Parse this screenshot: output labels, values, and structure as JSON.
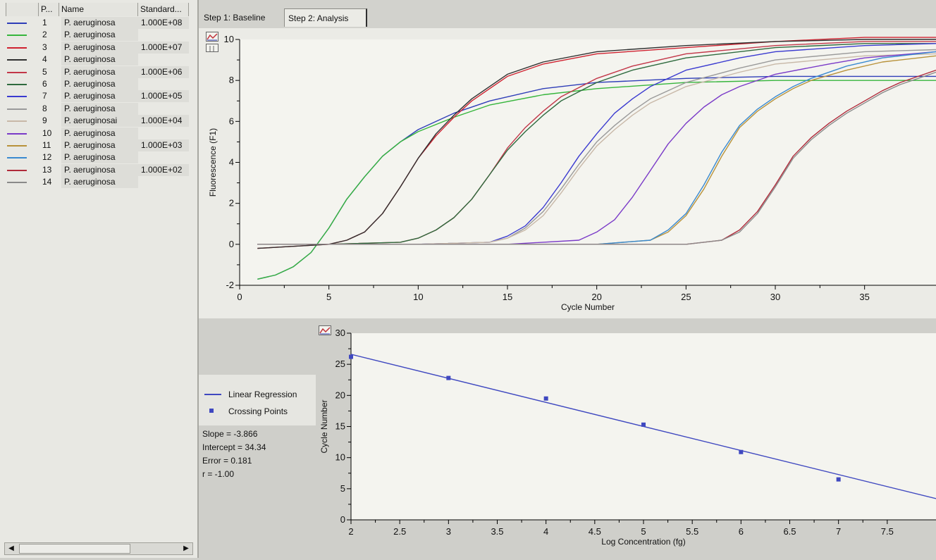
{
  "sample_list": {
    "columns": [
      "P...",
      "Name",
      "Standard..."
    ],
    "rows": [
      {
        "pos": "1",
        "name": "P. aeruginosa",
        "standard": "1.000E+08",
        "color": "#2e3db8"
      },
      {
        "pos": "2",
        "name": "P. aeruginosa",
        "standard": "",
        "color": "#36b53c"
      },
      {
        "pos": "3",
        "name": "P. aeruginosa",
        "standard": "1.000E+07",
        "color": "#cf2230"
      },
      {
        "pos": "4",
        "name": "P. aeruginosa",
        "standard": "",
        "color": "#303030"
      },
      {
        "pos": "5",
        "name": "P. aeruginosa",
        "standard": "1.000E+06",
        "color": "#c23648"
      },
      {
        "pos": "6",
        "name": "P. aeruginosa",
        "standard": "",
        "color": "#2e6a3e"
      },
      {
        "pos": "7",
        "name": "P. aeruginosa",
        "standard": "1.000E+05",
        "color": "#3a3ad0"
      },
      {
        "pos": "8",
        "name": "P. aeruginosa",
        "standard": "",
        "color": "#9a9a9a"
      },
      {
        "pos": "9",
        "name": "P. aeruginosai",
        "standard": "1.000E+04",
        "color": "#c8b8a8"
      },
      {
        "pos": "10",
        "name": "P. aeruginosa",
        "standard": "",
        "color": "#7a3ac8"
      },
      {
        "pos": "11",
        "name": "P. aeruginosa",
        "standard": "1.000E+03",
        "color": "#b8923a"
      },
      {
        "pos": "12",
        "name": "P. aeruginosa",
        "standard": "",
        "color": "#3a8ad0"
      },
      {
        "pos": "13",
        "name": "P. aeruginosa",
        "standard": "1.000E+02",
        "color": "#b02a3a"
      },
      {
        "pos": "14",
        "name": "P. aeruginosa",
        "standard": "",
        "color": "#8a8a8a"
      }
    ]
  },
  "tabs": [
    {
      "label": "Step 1: Baseline",
      "active": false
    },
    {
      "label": "Step 2: Analysis",
      "active": true
    }
  ],
  "regression": {
    "legend": {
      "line_label": "Linear Regression",
      "points_label": "Crossing Points"
    },
    "stats": {
      "slope": "Slope = -3.866",
      "intercept": "Intercept = 34.34",
      "error": "Error = 0.181",
      "r": "r = -1.00"
    }
  },
  "chart_data": [
    {
      "type": "line",
      "xlabel": "Cycle Number",
      "ylabel": "Fluorescence (F1)",
      "xlim": [
        0,
        39
      ],
      "ylim": [
        -2,
        10
      ],
      "xticks": [
        0,
        5,
        10,
        15,
        20,
        25,
        30,
        35
      ],
      "yticks": [
        -2,
        0,
        2,
        4,
        6,
        8,
        10
      ],
      "series": [
        {
          "color": "#2e3db8",
          "x": [
            1,
            2,
            3,
            4,
            5,
            6,
            7,
            8,
            9,
            10,
            12,
            14,
            17,
            20,
            25,
            30,
            35,
            39
          ],
          "y": [
            -1.7,
            -1.5,
            -1.1,
            -0.4,
            0.8,
            2.2,
            3.3,
            4.3,
            5.0,
            5.6,
            6.4,
            7.0,
            7.6,
            7.9,
            8.1,
            8.2,
            8.2,
            8.2
          ]
        },
        {
          "color": "#36b53c",
          "x": [
            1,
            2,
            3,
            4,
            5,
            6,
            7,
            8,
            9,
            10,
            12,
            14,
            17,
            20,
            25,
            30,
            35,
            39
          ],
          "y": [
            -1.7,
            -1.5,
            -1.1,
            -0.4,
            0.8,
            2.2,
            3.3,
            4.3,
            5.0,
            5.5,
            6.2,
            6.8,
            7.3,
            7.6,
            7.9,
            8.0,
            8.0,
            8.0
          ]
        },
        {
          "color": "#cf2230",
          "x": [
            1,
            3,
            5,
            6,
            7,
            8,
            9,
            10,
            11,
            12,
            13,
            15,
            17,
            20,
            25,
            30,
            35,
            39
          ],
          "y": [
            -0.2,
            -0.1,
            0.0,
            0.2,
            0.6,
            1.5,
            2.8,
            4.2,
            5.3,
            6.2,
            7.0,
            8.2,
            8.8,
            9.3,
            9.6,
            9.9,
            10.1,
            10.1
          ]
        },
        {
          "color": "#303030",
          "x": [
            1,
            3,
            5,
            6,
            7,
            8,
            9,
            10,
            11,
            12,
            13,
            15,
            17,
            20,
            25,
            30,
            35,
            39
          ],
          "y": [
            -0.2,
            -0.1,
            0.0,
            0.2,
            0.6,
            1.5,
            2.8,
            4.2,
            5.4,
            6.3,
            7.1,
            8.3,
            8.9,
            9.4,
            9.7,
            9.9,
            10.0,
            10.0
          ]
        },
        {
          "color": "#c23648",
          "x": [
            1,
            5,
            9,
            10,
            11,
            12,
            13,
            14,
            15,
            16,
            17,
            18,
            20,
            22,
            25,
            30,
            35,
            39
          ],
          "y": [
            0,
            0,
            0.1,
            0.3,
            0.7,
            1.3,
            2.2,
            3.4,
            4.7,
            5.7,
            6.5,
            7.2,
            8.1,
            8.7,
            9.3,
            9.7,
            9.9,
            9.9
          ]
        },
        {
          "color": "#2e6a3e",
          "x": [
            1,
            5,
            9,
            10,
            11,
            12,
            13,
            14,
            15,
            16,
            17,
            18,
            20,
            22,
            25,
            30,
            35,
            39
          ],
          "y": [
            0,
            0,
            0.1,
            0.3,
            0.7,
            1.3,
            2.2,
            3.4,
            4.6,
            5.5,
            6.3,
            7.0,
            7.9,
            8.5,
            9.1,
            9.6,
            9.8,
            9.8
          ]
        },
        {
          "color": "#3a3ad0",
          "x": [
            1,
            10,
            14,
            15,
            16,
            17,
            18,
            19,
            20,
            21,
            22,
            23,
            25,
            28,
            30,
            35,
            39
          ],
          "y": [
            0,
            0,
            0.1,
            0.4,
            0.9,
            1.8,
            3.0,
            4.3,
            5.4,
            6.4,
            7.1,
            7.7,
            8.5,
            9.1,
            9.4,
            9.7,
            9.8
          ]
        },
        {
          "color": "#9a9a9a",
          "x": [
            1,
            10,
            14,
            15,
            16,
            17,
            18,
            19,
            20,
            21,
            22,
            23,
            25,
            28,
            30,
            35,
            39
          ],
          "y": [
            0,
            0,
            0.1,
            0.3,
            0.8,
            1.6,
            2.7,
            3.9,
            5.0,
            5.8,
            6.5,
            7.1,
            7.9,
            8.6,
            9.0,
            9.4,
            9.5
          ]
        },
        {
          "color": "#c8b8a8",
          "x": [
            1,
            10,
            14,
            15,
            16,
            17,
            18,
            19,
            20,
            21,
            22,
            23,
            25,
            28,
            30,
            35,
            39
          ],
          "y": [
            0,
            0,
            0.1,
            0.3,
            0.7,
            1.4,
            2.5,
            3.7,
            4.8,
            5.6,
            6.3,
            6.9,
            7.7,
            8.4,
            8.8,
            9.2,
            9.3
          ]
        },
        {
          "color": "#7a3ac8",
          "x": [
            1,
            15,
            19,
            20,
            21,
            22,
            23,
            24,
            25,
            26,
            27,
            28,
            30,
            33,
            35,
            39
          ],
          "y": [
            0,
            0,
            0.2,
            0.6,
            1.2,
            2.3,
            3.6,
            4.9,
            5.9,
            6.7,
            7.3,
            7.7,
            8.3,
            8.8,
            9.1,
            9.4
          ]
        },
        {
          "color": "#b8923a",
          "x": [
            1,
            20,
            23,
            24,
            25,
            26,
            27,
            28,
            29,
            30,
            31,
            32,
            34,
            36,
            39
          ],
          "y": [
            0,
            0,
            0.2,
            0.6,
            1.4,
            2.7,
            4.3,
            5.7,
            6.5,
            7.1,
            7.6,
            8.0,
            8.5,
            8.9,
            9.2
          ]
        },
        {
          "color": "#3a8ad0",
          "x": [
            1,
            20,
            23,
            24,
            25,
            26,
            27,
            28,
            29,
            30,
            31,
            32,
            34,
            36,
            39
          ],
          "y": [
            0,
            0,
            0.2,
            0.7,
            1.5,
            2.9,
            4.5,
            5.8,
            6.6,
            7.2,
            7.7,
            8.1,
            8.7,
            9.1,
            9.4
          ]
        },
        {
          "color": "#b02a3a",
          "x": [
            1,
            25,
            27,
            28,
            29,
            30,
            31,
            32,
            33,
            34,
            35,
            36,
            37,
            38,
            39
          ],
          "y": [
            0,
            0,
            0.2,
            0.7,
            1.6,
            2.9,
            4.3,
            5.2,
            5.9,
            6.5,
            7.0,
            7.5,
            7.9,
            8.2,
            8.5
          ]
        },
        {
          "color": "#8a8a8a",
          "x": [
            1,
            25,
            27,
            28,
            29,
            30,
            31,
            32,
            33,
            34,
            35,
            36,
            37,
            38,
            39
          ],
          "y": [
            0,
            0,
            0.2,
            0.6,
            1.5,
            2.8,
            4.2,
            5.1,
            5.8,
            6.4,
            6.9,
            7.4,
            7.8,
            8.1,
            8.4
          ]
        }
      ]
    },
    {
      "type": "scatter",
      "xlabel": "Log Concentration (fg)",
      "ylabel": "Cycle Number",
      "xlim": [
        2,
        8
      ],
      "ylim": [
        0,
        30
      ],
      "xticks": [
        2,
        2.5,
        3,
        3.5,
        4,
        4.5,
        5,
        5.5,
        6,
        6.5,
        7,
        7.5
      ],
      "yticks": [
        0,
        5,
        10,
        15,
        20,
        25,
        30
      ],
      "series": [
        {
          "name": "Crossing Points",
          "color": "#3f48c0",
          "x": [
            2,
            3,
            4,
            5,
            6,
            7
          ],
          "y": [
            26.2,
            22.8,
            19.5,
            15.3,
            10.9,
            6.5
          ]
        },
        {
          "name": "Linear Regression",
          "color": "#3f48c0",
          "slope": -3.866,
          "intercept": 34.34
        }
      ]
    }
  ]
}
